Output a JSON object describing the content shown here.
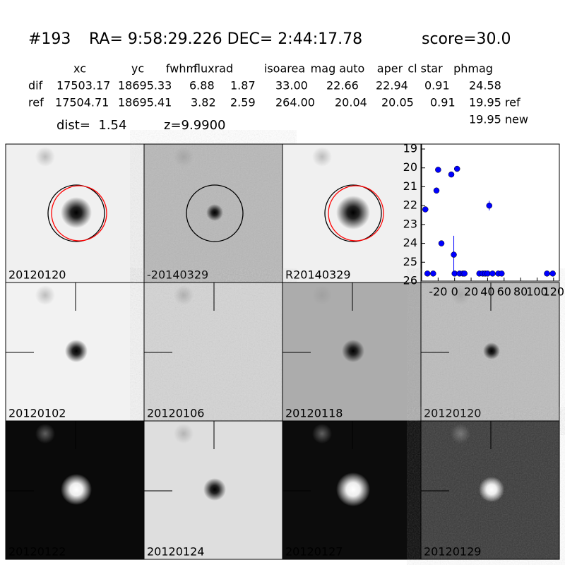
{
  "header": {
    "id": "#193",
    "coords": "RA= 9:58:29.226 DEC= 2:44:17.78",
    "score": "score=30.0"
  },
  "table": {
    "columns": [
      "xc",
      "yc",
      "fwhm",
      "fluxrad",
      "isoarea",
      "mag auto",
      "aper",
      "cl star",
      "phmag"
    ],
    "rows": [
      [
        "dif",
        "17503.17",
        "18695.33",
        "6.88",
        "1.87",
        "33.00",
        "22.66",
        "22.94",
        "0.91",
        "24.58"
      ],
      [
        "ref",
        "17504.71",
        "18695.41",
        "3.82",
        "2.59",
        "264.00",
        "20.04",
        "20.05",
        "0.91",
        "19.95 ref"
      ]
    ],
    "extra": "19.95 new"
  },
  "info": {
    "dist": "dist=  1.54",
    "z": "z=9.9900"
  },
  "panels": [
    {
      "label": "20120120"
    },
    {
      "label": "-20140329"
    },
    {
      "label": "R20140329"
    },
    {
      "label": "20120102"
    },
    {
      "label": "20120106"
    },
    {
      "label": "20120118"
    },
    {
      "label": "20120120",
      "label_color": "#ff0000"
    },
    {
      "label": "20120122"
    },
    {
      "label": "20120124"
    },
    {
      "label": "20120127"
    },
    {
      "label": "20120129"
    }
  ],
  "chart_data": {
    "type": "scatter",
    "color": "#0000ff",
    "x": [
      -35.5,
      -33,
      -26,
      -22,
      -20,
      -16,
      -4,
      -1,
      0,
      3,
      6,
      10,
      12,
      30,
      34,
      37,
      40,
      42,
      46,
      53,
      57,
      112,
      119
    ],
    "values": [
      22.2,
      25.6,
      25.6,
      21.2,
      20.1,
      24.0,
      20.35,
      24.6,
      25.6,
      20.05,
      25.6,
      25.6,
      25.6,
      25.6,
      25.6,
      25.6,
      25.6,
      22.0,
      25.6,
      25.6,
      25.6,
      25.6,
      25.6
    ],
    "errors": [
      null,
      null,
      null,
      null,
      null,
      null,
      null,
      1.0,
      null,
      null,
      null,
      null,
      null,
      null,
      null,
      null,
      null,
      0.25,
      null,
      null,
      null,
      null,
      null
    ],
    "xlim": [
      -40,
      127
    ],
    "ylim": [
      26,
      19
    ],
    "xticks": [
      -20,
      0,
      20,
      40,
      60,
      80,
      100,
      120
    ],
    "yticks": [
      19,
      20,
      21,
      22,
      23,
      24,
      25,
      26
    ]
  }
}
